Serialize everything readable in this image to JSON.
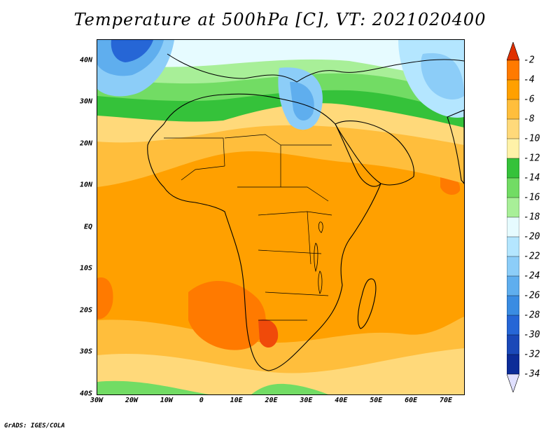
{
  "title": "Temperature at 500hPa [C], VT: 2021020400",
  "footer": "GrADS: IGES/COLA",
  "map": {
    "lat_ticks": [
      "40N",
      "30N",
      "20N",
      "10N",
      "EQ",
      "10S",
      "20S",
      "30S",
      "40S"
    ],
    "lon_ticks": [
      "30W",
      "20W",
      "10W",
      "0",
      "10E",
      "20E",
      "30E",
      "40E",
      "50E",
      "60E",
      "70E"
    ],
    "lat_range": [
      -40,
      45
    ],
    "lon_range": [
      -30,
      75
    ],
    "coastline_color": "#000000"
  },
  "colorbar": {
    "labels": [
      "-2",
      "-4",
      "-6",
      "-8",
      "-10",
      "-12",
      "-14",
      "-16",
      "-18",
      "-20",
      "-22",
      "-24",
      "-26",
      "-28",
      "-30",
      "-32",
      "-34"
    ],
    "colors": [
      "#f04a0a",
      "#ff7a00",
      "#ffa000",
      "#ffbe3c",
      "#ffd97a",
      "#fff2a8",
      "#35c23a",
      "#72dc64",
      "#a8ef98",
      "#e6fbff",
      "#b4e6ff",
      "#8ccdf8",
      "#5faeee",
      "#3a8ce2",
      "#2666d6",
      "#1a48b8",
      "#0c2c98",
      "#08187a"
    ],
    "top_arrow_color": "#e03000",
    "bottom_arrow_color": "#e0e0ff"
  }
}
